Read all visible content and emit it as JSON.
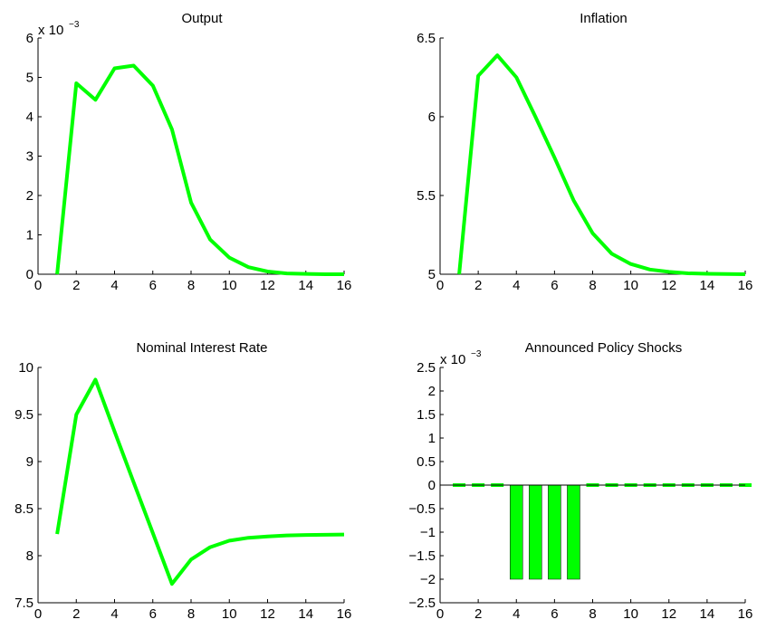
{
  "colors": {
    "series": "#00ff00",
    "axis": "#000000",
    "background": "#ffffff"
  },
  "chart_data": [
    {
      "type": "line",
      "title": "Output",
      "exponent": {
        "base": "x 10",
        "power": "−3"
      },
      "x": [
        1,
        2,
        3,
        4,
        5,
        6,
        7,
        8,
        9,
        10,
        11,
        12,
        13,
        14,
        15,
        16
      ],
      "series": [
        {
          "values": [
            0,
            4.85,
            4.43,
            5.23,
            5.3,
            4.79,
            3.68,
            1.82,
            0.88,
            0.42,
            0.18,
            0.07,
            0.02,
            0.01,
            0,
            0
          ]
        }
      ],
      "xlim": [
        0,
        16
      ],
      "ylim": [
        0,
        6
      ],
      "xticks": [
        "0",
        "2",
        "4",
        "6",
        "8",
        "10",
        "12",
        "14",
        "16"
      ],
      "yticks": [
        "0",
        "1",
        "2",
        "3",
        "4",
        "5",
        "6"
      ],
      "grid": false
    },
    {
      "type": "line",
      "title": "Inflation",
      "x": [
        1,
        2,
        3,
        4,
        5,
        6,
        7,
        8,
        9,
        10,
        11,
        12,
        13,
        14,
        15,
        16
      ],
      "series": [
        {
          "values": [
            5.0,
            6.26,
            6.39,
            6.25,
            6.0,
            5.74,
            5.47,
            5.26,
            5.13,
            5.065,
            5.03,
            5.015,
            5.006,
            5.003,
            5.001,
            5.0
          ]
        }
      ],
      "xlim": [
        0,
        16
      ],
      "ylim": [
        5,
        6.5
      ],
      "xticks": [
        "0",
        "2",
        "4",
        "6",
        "8",
        "10",
        "12",
        "14",
        "16"
      ],
      "yticks": [
        "5",
        "5.5",
        "6",
        "6.5"
      ],
      "grid": false
    },
    {
      "type": "line",
      "title": "Nominal Interest Rate",
      "x": [
        1,
        2,
        3,
        4,
        5,
        6,
        7,
        8,
        9,
        10,
        11,
        12,
        13,
        14,
        15,
        16
      ],
      "series": [
        {
          "values": [
            8.23,
            9.5,
            9.87,
            9.32,
            8.78,
            8.24,
            7.7,
            7.96,
            8.09,
            8.16,
            8.19,
            8.205,
            8.215,
            8.22,
            8.222,
            8.225
          ]
        }
      ],
      "xlim": [
        0,
        16
      ],
      "ylim": [
        7.5,
        10
      ],
      "xticks": [
        "0",
        "2",
        "4",
        "6",
        "8",
        "10",
        "12",
        "14",
        "16"
      ],
      "yticks": [
        "7.5",
        "8",
        "8.5",
        "9",
        "9.5",
        "10"
      ],
      "grid": false
    },
    {
      "type": "bar",
      "title": "Announced Policy Shocks",
      "exponent": {
        "base": "x 10",
        "power": "−3"
      },
      "x": [
        1,
        2,
        3,
        4,
        5,
        6,
        7,
        8,
        9,
        10,
        11,
        12,
        13,
        14,
        15,
        16
      ],
      "series": [
        {
          "values": [
            0,
            0,
            0,
            -2,
            -2,
            -2,
            -2,
            0,
            0,
            0,
            0,
            0,
            0,
            0,
            0,
            0
          ]
        }
      ],
      "xlim": [
        0,
        16
      ],
      "ylim": [
        -2.5,
        2.5
      ],
      "xticks": [
        "0",
        "2",
        "4",
        "6",
        "8",
        "10",
        "12",
        "14",
        "16"
      ],
      "yticks": [
        "−2.5",
        "−2",
        "−1.5",
        "−1",
        "−0.5",
        "0",
        "0.5",
        "1",
        "1.5",
        "2",
        "2.5"
      ],
      "zero_line": true,
      "grid": false
    }
  ]
}
